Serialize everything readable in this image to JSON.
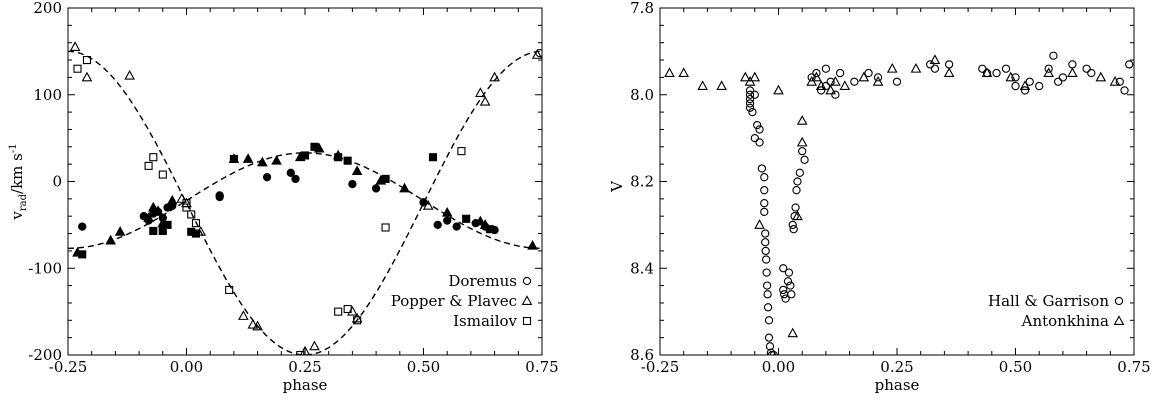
{
  "chart_data": [
    {
      "type": "scatter",
      "xlabel": "phase",
      "ylabel_main": "v",
      "ylabel_sub": "rad",
      "ylabel_unit": "/km s",
      "ylabel_sup": "-1",
      "xlim": [
        -0.25,
        0.75
      ],
      "ylim": [
        -200,
        200
      ],
      "xticks": [
        -0.25,
        0.0,
        0.25,
        0.5,
        0.75
      ],
      "xtick_labels": [
        "-0.25",
        "0.00",
        "0.25",
        "0.50",
        "0.75"
      ],
      "yticks": [
        -200,
        -100,
        0,
        100,
        200
      ],
      "ytick_labels": [
        "-200",
        "-100",
        "0",
        "100",
        "200"
      ],
      "legend_position": "bottom-right",
      "curves": [
        {
          "kind": "sine",
          "gamma": -25,
          "amplitude": 175,
          "phase_of_min": 0.25
        },
        {
          "kind": "sine",
          "gamma": -22,
          "amplitude": 55,
          "phase_of_max": 0.25
        }
      ],
      "series": [
        {
          "name": "Doremus",
          "marker": "circle-filled",
          "points": [
            [
              -0.22,
              -52
            ],
            [
              -0.09,
              -40
            ],
            [
              -0.08,
              -45
            ],
            [
              -0.07,
              -37
            ],
            [
              -0.06,
              -35
            ],
            [
              -0.05,
              -42
            ],
            [
              -0.04,
              -30
            ],
            [
              -0.03,
              -28
            ],
            [
              0.07,
              -18
            ],
            [
              0.07,
              -16
            ],
            [
              0.17,
              5
            ],
            [
              0.22,
              10
            ],
            [
              0.23,
              3
            ],
            [
              0.35,
              -3
            ],
            [
              0.4,
              -8
            ],
            [
              0.5,
              -24
            ],
            [
              0.53,
              -50
            ],
            [
              0.55,
              -45
            ],
            [
              0.57,
              -52
            ],
            [
              0.61,
              -48
            ],
            [
              0.63,
              -52
            ],
            [
              0.65,
              -56
            ]
          ]
        },
        {
          "name": "Popper & Plavec",
          "marker": "triangle-filled",
          "points": [
            [
              -0.23,
              -82
            ],
            [
              -0.16,
              -68
            ],
            [
              -0.14,
              -58
            ],
            [
              -0.08,
              -42
            ],
            [
              -0.07,
              -30
            ],
            [
              -0.06,
              -34
            ],
            [
              -0.05,
              -48
            ],
            [
              -0.03,
              -22
            ],
            [
              0.1,
              26
            ],
            [
              0.13,
              26
            ],
            [
              0.16,
              22
            ],
            [
              0.19,
              24
            ],
            [
              0.24,
              28
            ],
            [
              0.28,
              38
            ],
            [
              0.32,
              30
            ],
            [
              0.36,
              12
            ],
            [
              0.41,
              1
            ],
            [
              0.46,
              -8
            ],
            [
              0.55,
              -36
            ],
            [
              0.62,
              -46
            ],
            [
              0.63,
              -50
            ],
            [
              0.73,
              -74
            ]
          ]
        },
        {
          "name": "Ismailov",
          "marker": "square-filled",
          "points": [
            [
              -0.22,
              -84
            ],
            [
              -0.07,
              -57
            ],
            [
              -0.05,
              -57
            ],
            [
              -0.04,
              -50
            ],
            [
              0.01,
              -58
            ],
            [
              0.02,
              -60
            ],
            [
              0.1,
              26
            ],
            [
              0.25,
              30
            ],
            [
              0.27,
              40
            ],
            [
              0.32,
              28
            ],
            [
              0.34,
              24
            ],
            [
              0.42,
              3
            ],
            [
              0.52,
              28
            ],
            [
              0.59,
              -43
            ],
            [
              0.64,
              -55
            ]
          ]
        },
        {
          "name": "Popper & Plavec",
          "marker": "triangle-open",
          "legend": false,
          "points": [
            [
              -0.235,
              155
            ],
            [
              -0.21,
              120
            ],
            [
              -0.12,
              122
            ],
            [
              -0.01,
              -20
            ],
            [
              0.0,
              -25
            ],
            [
              0.03,
              -58
            ],
            [
              0.12,
              -155
            ],
            [
              0.14,
              -165
            ],
            [
              0.15,
              -167
            ],
            [
              0.25,
              -196
            ],
            [
              0.27,
              -190
            ],
            [
              0.35,
              -150
            ],
            [
              0.36,
              -158
            ],
            [
              0.51,
              -28
            ],
            [
              0.62,
              102
            ],
            [
              0.63,
              92
            ],
            [
              0.65,
              120
            ],
            [
              0.74,
              146
            ]
          ]
        },
        {
          "name": "Ismailov",
          "marker": "square-open",
          "legend": false,
          "points": [
            [
              -0.23,
              130
            ],
            [
              -0.21,
              140
            ],
            [
              -0.08,
              18
            ],
            [
              -0.07,
              28
            ],
            [
              -0.05,
              8
            ],
            [
              0.0,
              -25
            ],
            [
              0.0,
              -30
            ],
            [
              0.01,
              -38
            ],
            [
              0.02,
              -48
            ],
            [
              0.09,
              -125
            ],
            [
              0.24,
              -200
            ],
            [
              0.32,
              -150
            ],
            [
              0.34,
              -147
            ],
            [
              0.36,
              -160
            ],
            [
              0.42,
              -53
            ],
            [
              0.58,
              35
            ]
          ]
        },
        {
          "name": "Doremus",
          "marker": "circle-open",
          "legend": false,
          "points": [
            [
              0.745,
              148
            ]
          ]
        }
      ],
      "legend": [
        {
          "label": "Doremus",
          "marker": "circle-open"
        },
        {
          "label": "Popper & Plavec",
          "marker": "triangle-open"
        },
        {
          "label": "Ismailov",
          "marker": "square-open"
        }
      ]
    },
    {
      "type": "scatter",
      "xlabel": "phase",
      "ylabel": "V",
      "xlim": [
        -0.25,
        0.75
      ],
      "ylim": [
        8.6,
        7.8
      ],
      "y_inverted": true,
      "xticks": [
        -0.25,
        0.0,
        0.25,
        0.5,
        0.75
      ],
      "xtick_labels": [
        "-0.25",
        "0.00",
        "0.25",
        "0.50",
        "0.75"
      ],
      "yticks": [
        7.8,
        8.0,
        8.2,
        8.4,
        8.6
      ],
      "ytick_labels": [
        "7.8",
        "8.0",
        "8.2",
        "8.4",
        "8.6"
      ],
      "legend_position": "bottom-right",
      "series": [
        {
          "name": "Hall & Garrison",
          "marker": "circle-open",
          "points": [
            [
              -0.06,
              7.99
            ],
            [
              -0.06,
              8.0
            ],
            [
              -0.06,
              8.01
            ],
            [
              -0.06,
              8.02
            ],
            [
              -0.06,
              8.03
            ],
            [
              -0.055,
              8.04
            ],
            [
              -0.05,
              8.0
            ],
            [
              -0.05,
              8.1
            ],
            [
              -0.045,
              8.07
            ],
            [
              -0.04,
              8.08
            ],
            [
              -0.04,
              8.11
            ],
            [
              -0.035,
              8.17
            ],
            [
              -0.03,
              8.19
            ],
            [
              -0.03,
              8.22
            ],
            [
              -0.03,
              8.25
            ],
            [
              -0.03,
              8.27
            ],
            [
              -0.028,
              8.32
            ],
            [
              -0.028,
              8.34
            ],
            [
              -0.027,
              8.36
            ],
            [
              -0.026,
              8.38
            ],
            [
              -0.025,
              8.41
            ],
            [
              -0.024,
              8.44
            ],
            [
              -0.023,
              8.46
            ],
            [
              -0.022,
              8.49
            ],
            [
              -0.02,
              8.52
            ],
            [
              -0.02,
              8.56
            ],
            [
              -0.018,
              8.58
            ],
            [
              -0.016,
              8.595
            ],
            [
              -0.014,
              8.6
            ],
            [
              -0.01,
              8.6
            ],
            [
              0.01,
              8.4
            ],
            [
              0.01,
              8.45
            ],
            [
              0.012,
              8.46
            ],
            [
              0.015,
              8.47
            ],
            [
              0.02,
              8.43
            ],
            [
              0.022,
              8.41
            ],
            [
              0.025,
              8.44
            ],
            [
              0.027,
              8.46
            ],
            [
              0.03,
              8.3
            ],
            [
              0.032,
              8.31
            ],
            [
              0.034,
              8.28
            ],
            [
              0.036,
              8.26
            ],
            [
              0.038,
              8.22
            ],
            [
              0.04,
              8.2
            ],
            [
              0.045,
              8.18
            ],
            [
              0.05,
              8.13
            ],
            [
              0.055,
              8.15
            ],
            [
              0.07,
              7.96
            ],
            [
              0.08,
              7.95
            ],
            [
              0.09,
              7.99
            ],
            [
              0.1,
              7.94
            ],
            [
              0.1,
              7.98
            ],
            [
              0.11,
              7.97
            ],
            [
              0.12,
              8.0
            ],
            [
              0.13,
              7.95
            ],
            [
              0.16,
              7.97
            ],
            [
              0.19,
              7.95
            ],
            [
              0.21,
              7.96
            ],
            [
              0.25,
              7.97
            ],
            [
              0.32,
              7.93
            ],
            [
              0.33,
              7.94
            ],
            [
              0.36,
              7.93
            ],
            [
              0.43,
              7.94
            ],
            [
              0.44,
              7.95
            ],
            [
              0.46,
              7.95
            ],
            [
              0.48,
              7.94
            ],
            [
              0.5,
              7.96
            ],
            [
              0.5,
              7.98
            ],
            [
              0.52,
              7.99
            ],
            [
              0.53,
              7.97
            ],
            [
              0.55,
              7.98
            ],
            [
              0.57,
              7.94
            ],
            [
              0.58,
              7.91
            ],
            [
              0.59,
              7.97
            ],
            [
              0.6,
              7.96
            ],
            [
              0.62,
              7.93
            ],
            [
              0.65,
              7.94
            ],
            [
              0.66,
              7.95
            ],
            [
              0.72,
              7.97
            ],
            [
              0.73,
              7.99
            ],
            [
              0.74,
              7.93
            ]
          ]
        },
        {
          "name": "Antonkhina",
          "marker": "triangle-open",
          "points": [
            [
              -0.23,
              7.95
            ],
            [
              -0.2,
              7.95
            ],
            [
              -0.16,
              7.98
            ],
            [
              -0.12,
              7.98
            ],
            [
              -0.07,
              7.96
            ],
            [
              -0.06,
              7.97
            ],
            [
              -0.05,
              7.96
            ],
            [
              -0.04,
              8.3
            ],
            [
              0.0,
              7.99
            ],
            [
              0.03,
              8.55
            ],
            [
              0.04,
              8.28
            ],
            [
              0.05,
              8.06
            ],
            [
              0.05,
              8.11
            ],
            [
              0.07,
              7.97
            ],
            [
              0.08,
              7.96
            ],
            [
              0.09,
              7.98
            ],
            [
              0.11,
              7.99
            ],
            [
              0.12,
              7.97
            ],
            [
              0.14,
              7.98
            ],
            [
              0.18,
              7.96
            ],
            [
              0.21,
              7.97
            ],
            [
              0.24,
              7.94
            ],
            [
              0.29,
              7.94
            ],
            [
              0.33,
              7.92
            ],
            [
              0.36,
              7.95
            ],
            [
              0.44,
              7.95
            ],
            [
              0.49,
              7.96
            ],
            [
              0.52,
              7.98
            ],
            [
              0.57,
              7.95
            ],
            [
              0.62,
              7.95
            ],
            [
              0.68,
              7.96
            ],
            [
              0.71,
              7.97
            ]
          ]
        }
      ],
      "legend": [
        {
          "label": "Hall & Garrison",
          "marker": "circle-open"
        },
        {
          "label": "Antonkhina",
          "marker": "triangle-open"
        }
      ]
    }
  ]
}
